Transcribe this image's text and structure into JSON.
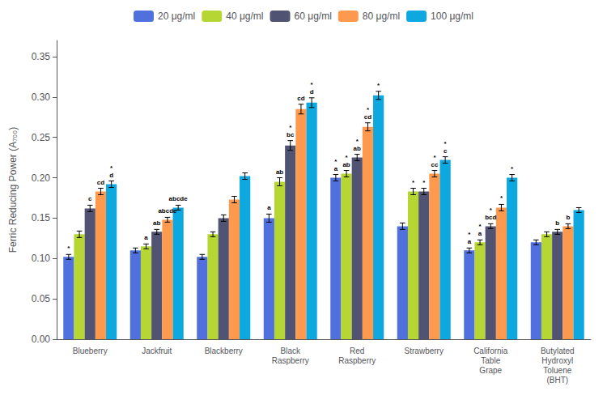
{
  "chart_data": {
    "type": "bar",
    "y_label": "Ferric Reducing Power (A₇₀₀)",
    "categories": [
      "Blueberry",
      "Jackfruit",
      "Blackberry",
      "Black\nRaspberry",
      "Red\nRaspberry",
      "Strawberry",
      "California\nTable\nGrape",
      "Butylated\nHydroxyl\nToluene\n(BHT)"
    ],
    "series": [
      {
        "name": "20 μg/ml",
        "values": [
          0.102,
          0.11,
          0.102,
          0.15,
          0.2,
          0.14,
          0.11,
          0.12
        ],
        "errors": [
          0.003,
          0.003,
          0.003,
          0.005,
          0.004,
          0.004,
          0.003,
          0.003
        ],
        "annotations": [
          "*",
          null,
          null,
          "a",
          "*\na",
          null,
          "*\na",
          null
        ]
      },
      {
        "name": "40 μg/ml",
        "values": [
          0.13,
          0.115,
          0.13,
          0.195,
          0.205,
          0.183,
          0.12,
          0.13
        ],
        "errors": [
          0.004,
          0.003,
          0.003,
          0.005,
          0.004,
          0.004,
          0.003,
          0.003
        ],
        "annotations": [
          null,
          "a",
          null,
          "ab",
          "*\nab",
          "*",
          "*\na",
          null
        ]
      },
      {
        "name": "60 μg/ml",
        "values": [
          0.162,
          0.133,
          0.15,
          0.24,
          0.225,
          0.183,
          0.14,
          0.133
        ],
        "errors": [
          0.004,
          0.003,
          0.004,
          0.006,
          0.004,
          0.004,
          0.003,
          0.003
        ],
        "annotations": [
          "c",
          "ab",
          null,
          "*\nbc",
          "*\nab",
          "*",
          "*\nbcd",
          "b"
        ]
      },
      {
        "name": "80 μg/ml",
        "values": [
          0.183,
          0.148,
          0.173,
          0.285,
          0.263,
          0.205,
          0.163,
          0.14
        ],
        "errors": [
          0.004,
          0.003,
          0.004,
          0.006,
          0.005,
          0.004,
          0.004,
          0.003
        ],
        "annotations": [
          "cd",
          "abcde",
          null,
          "cd",
          "*\ncd",
          "*\ncc",
          "*",
          "b"
        ]
      },
      {
        "name": "100 μg/ml",
        "values": [
          0.192,
          0.163,
          0.202,
          0.293,
          0.302,
          0.222,
          0.2,
          0.16
        ],
        "errors": [
          0.004,
          0.003,
          0.004,
          0.006,
          0.005,
          0.004,
          0.004,
          0.003
        ],
        "annotations": [
          "*\nd",
          "abcde",
          null,
          "*\nd",
          "*",
          "*\nc",
          "*",
          null
        ]
      }
    ],
    "ylim": [
      0,
      0.37
    ],
    "yticks": [
      {
        "value": 0,
        "label": "0.00"
      },
      0.05,
      {
        "value": 0.1,
        "label": "0.10"
      },
      0.15,
      {
        "value": 0.2,
        "label": "0.20"
      },
      0.25,
      {
        "value": 0.3,
        "label": "0.30"
      },
      0.35
    ],
    "grid": false,
    "legend": "top"
  }
}
